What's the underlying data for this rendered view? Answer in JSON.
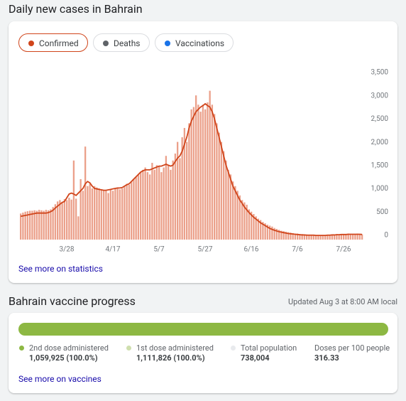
{
  "header": {
    "title": "Daily new cases in Bahrain"
  },
  "chips": [
    "Confirmed",
    "Deaths",
    "Vaccinations"
  ],
  "stats_link": "See more on statistics",
  "chart_data": {
    "type": "bar",
    "categories": [
      null,
      null,
      null,
      null,
      null,
      null,
      null,
      null,
      null,
      null,
      null,
      null,
      null,
      null,
      null,
      null,
      null,
      null,
      null,
      null,
      "3/28",
      null,
      null,
      null,
      null,
      null,
      null,
      null,
      null,
      null,
      null,
      null,
      null,
      null,
      null,
      null,
      null,
      null,
      null,
      null,
      "4/17",
      null,
      null,
      null,
      null,
      null,
      null,
      null,
      null,
      null,
      null,
      null,
      null,
      null,
      null,
      null,
      null,
      null,
      null,
      null,
      "5/7",
      null,
      null,
      null,
      null,
      null,
      null,
      null,
      null,
      null,
      null,
      null,
      null,
      null,
      null,
      null,
      null,
      null,
      null,
      null,
      "5/27",
      null,
      null,
      null,
      null,
      null,
      null,
      null,
      null,
      null,
      null,
      null,
      null,
      null,
      null,
      null,
      null,
      null,
      null,
      null,
      "6/16",
      null,
      null,
      null,
      null,
      null,
      null,
      null,
      null,
      null,
      null,
      null,
      null,
      null,
      null,
      null,
      null,
      null,
      null,
      null,
      "7/6",
      null,
      null,
      null,
      null,
      null,
      null,
      null,
      null,
      null,
      null,
      null,
      null,
      null,
      null,
      null,
      null,
      null,
      null,
      null,
      "7/26",
      null,
      null,
      null,
      null,
      null,
      null,
      null,
      null
    ],
    "series": [
      {
        "color": "#eba08a",
        "values": [
          560,
          580,
          600,
          610,
          620,
          620,
          630,
          620,
          640,
          630,
          620,
          640,
          630,
          650,
          700,
          760,
          820,
          850,
          800,
          870,
          850,
          900,
          860,
          1700,
          880,
          500,
          1300,
          1050,
          2000,
          1150,
          1200,
          1100,
          1150,
          1120,
          1100,
          1080,
          1060,
          1050,
          1000,
          1080,
          1050,
          1100,
          1120,
          1080,
          1100,
          1150,
          1200,
          1180,
          1250,
          1300,
          1350,
          1400,
          1450,
          1500,
          1550,
          1450,
          1400,
          1650,
          1500,
          1600,
          1580,
          1450,
          1550,
          1800,
          1600,
          1500,
          1700,
          1850,
          2100,
          1750,
          2200,
          2400,
          2100,
          2500,
          2800,
          2850,
          3100,
          2900,
          2750,
          2900,
          2800,
          2950,
          3200,
          2900,
          2700,
          2500,
          2300,
          2100,
          1900,
          1700,
          1500,
          1400,
          1250,
          1150,
          1050,
          950,
          850,
          800,
          750,
          650,
          600,
          550,
          500,
          450,
          420,
          380,
          350,
          320,
          300,
          280,
          250,
          230,
          210,
          190,
          180,
          170,
          160,
          150,
          140,
          130,
          130,
          120,
          120,
          110,
          110,
          100,
          100,
          100,
          100,
          90,
          90,
          100,
          90,
          90,
          100,
          100,
          110,
          120,
          110,
          120,
          110,
          120,
          130,
          120,
          110,
          120,
          130,
          120,
          110
        ]
      },
      {
        "type": "line",
        "color": "#d0451b",
        "values": [
          500,
          510,
          520,
          530,
          540,
          550,
          560,
          570,
          570,
          570,
          570,
          570,
          580,
          600,
          630,
          680,
          720,
          760,
          800,
          820,
          900,
          980,
          1000,
          980,
          950,
          1000,
          1050,
          1100,
          1200,
          1250,
          1220,
          1150,
          1100,
          1090,
          1080,
          1070,
          1060,
          1060,
          1070,
          1080,
          1090,
          1100,
          1110,
          1110,
          1120,
          1150,
          1180,
          1200,
          1250,
          1300,
          1350,
          1400,
          1450,
          1480,
          1500,
          1500,
          1500,
          1520,
          1540,
          1560,
          1580,
          1580,
          1600,
          1620,
          1600,
          1580,
          1600,
          1680,
          1750,
          1800,
          1900,
          2050,
          2200,
          2400,
          2550,
          2650,
          2750,
          2800,
          2850,
          2880,
          2920,
          2880,
          2850,
          2750,
          2600,
          2400,
          2200,
          2000,
          1800,
          1600,
          1450,
          1300,
          1150,
          1050,
          950,
          850,
          780,
          700,
          640,
          580,
          530,
          480,
          440,
          400,
          360,
          330,
          300,
          270,
          240,
          220,
          200,
          185,
          170,
          160,
          150,
          140,
          130,
          125,
          120,
          115,
          110,
          105,
          100,
          100,
          95,
          95,
          95,
          95,
          90,
          90,
          90,
          90,
          90,
          95,
          95,
          100,
          100,
          105,
          105,
          110,
          110,
          110,
          115,
          115,
          115,
          115,
          115,
          115,
          110
        ]
      }
    ],
    "ylim": [
      0,
      3500
    ],
    "yticks": [
      0,
      500,
      {
        "value": 1000,
        "label": "1,000"
      },
      {
        "value": 1500,
        "label": "1,500"
      },
      {
        "value": 2000,
        "label": "2,000"
      },
      {
        "value": 2500,
        "label": "2,500"
      },
      {
        "value": 3000,
        "label": "3,000"
      },
      {
        "value": 3500,
        "label": "3,500"
      }
    ],
    "grid": false
  },
  "vaccine": {
    "title": "Bahrain vaccine progress",
    "updated": "Updated Aug 3 at 8:00 AM local",
    "items": [
      {
        "label": "2nd dose administered",
        "value": "1,059,925 (100.0%)"
      },
      {
        "label": "1st dose administered",
        "value": "1,111,826 (100.0%)"
      },
      {
        "label": "Total population",
        "value": "738,004"
      },
      {
        "label": "Doses per 100 people",
        "value": "316.33"
      }
    ],
    "link": "See more on vaccines"
  }
}
